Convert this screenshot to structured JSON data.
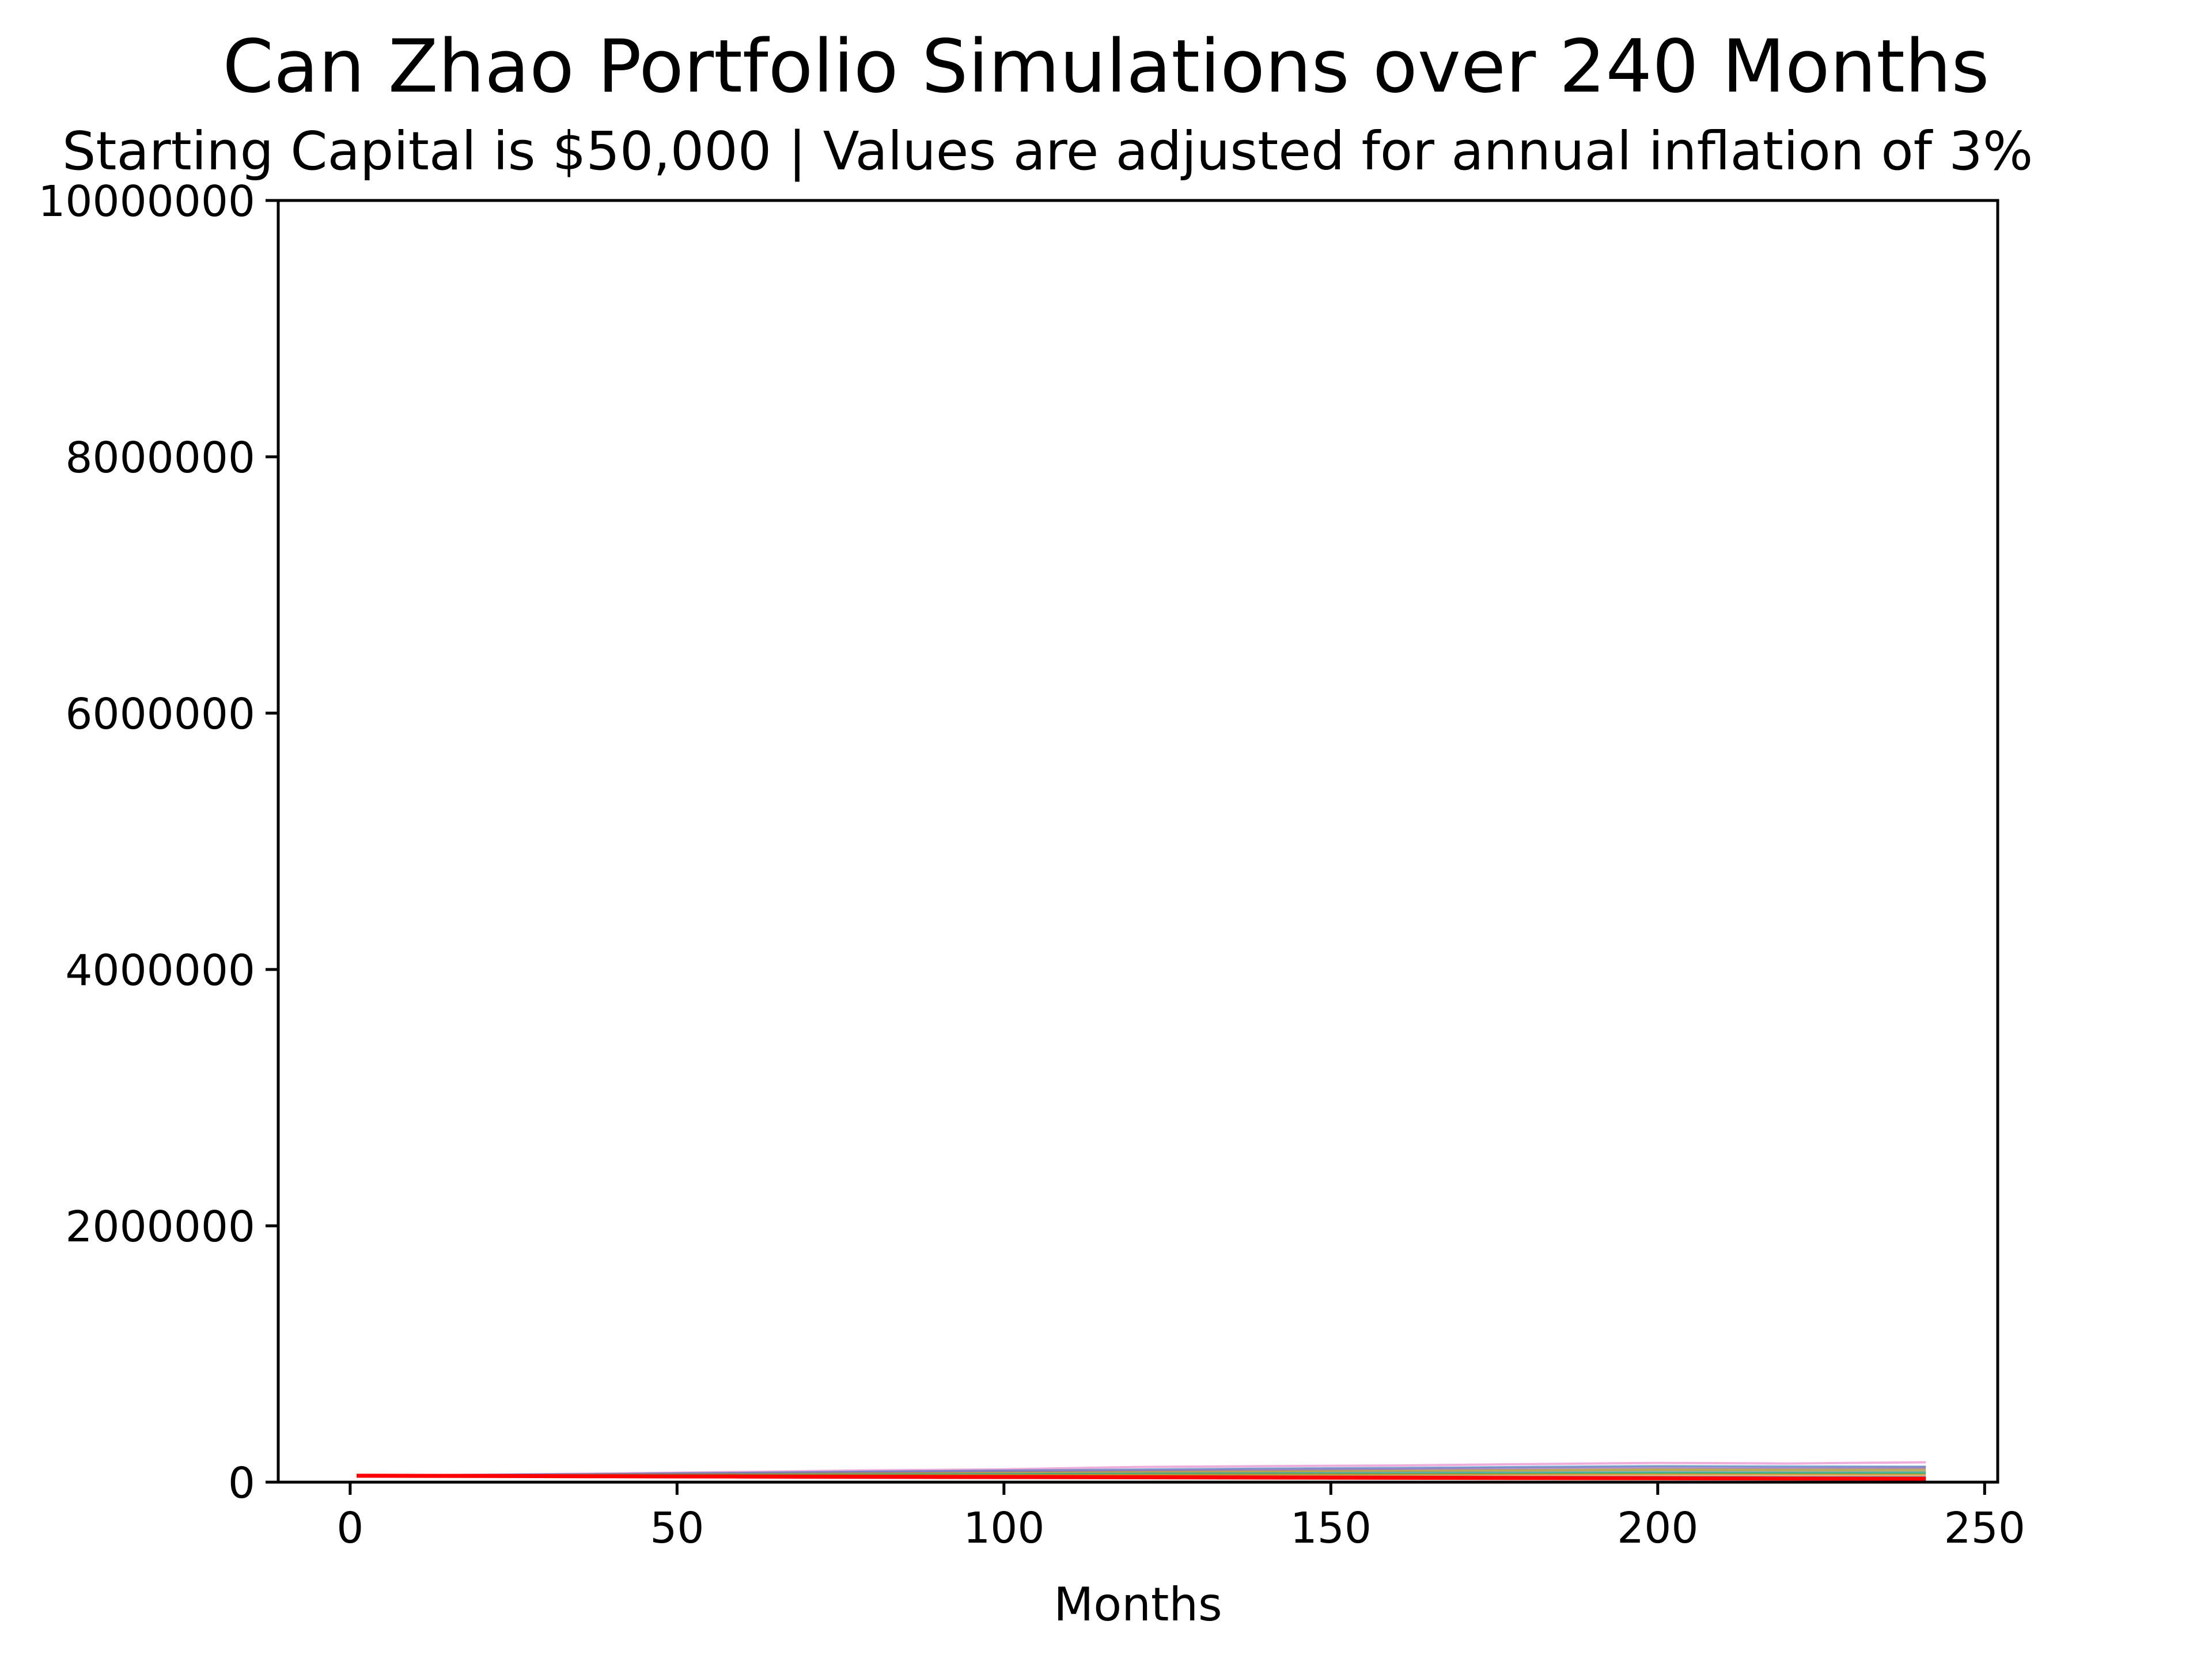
{
  "chart_data": {
    "type": "line",
    "title": "Can Zhao Portfolio Simulations over 240 Months",
    "subtitle": "Starting Capital is $50,000 | Values are adjusted for annual inflation of 3%",
    "xlabel": "Months",
    "ylabel": "",
    "xlim": [
      -11,
      252
    ],
    "ylim": [
      0,
      10000000
    ],
    "x_ticks": [
      0,
      50,
      100,
      150,
      200,
      250
    ],
    "y_ticks": [
      0,
      2000000,
      4000000,
      6000000,
      8000000,
      10000000
    ],
    "x_tick_labels": [
      "0",
      "50",
      "100",
      "150",
      "200",
      "250"
    ],
    "y_tick_labels": [
      "0",
      "2000000",
      "4000000",
      "6000000",
      "8000000",
      "10000000"
    ],
    "grid": false,
    "legend": "none",
    "x": [
      1,
      20,
      40,
      60,
      80,
      100,
      120,
      140,
      160,
      180,
      200,
      220,
      241
    ],
    "series": [
      {
        "color": "#e377c2",
        "values": [
          50000,
          58000,
          68000,
          80000,
          92000,
          100000,
          118000,
          125000,
          130000,
          140000,
          150000,
          145000,
          155000
        ]
      },
      {
        "color": "#1f77b4",
        "values": [
          50000,
          56000,
          63000,
          72000,
          82000,
          90000,
          98000,
          105000,
          110000,
          118000,
          125000,
          122000,
          120000
        ]
      },
      {
        "color": "#9467bd",
        "values": [
          50000,
          55000,
          61000,
          68000,
          78000,
          86000,
          92000,
          98000,
          104000,
          110000,
          116000,
          112000,
          115000
        ]
      },
      {
        "color": "#8c564b",
        "values": [
          50000,
          53000,
          57000,
          62000,
          68000,
          74000,
          80000,
          85000,
          90000,
          95000,
          100000,
          98000,
          100000
        ]
      },
      {
        "color": "#bcbd22",
        "values": [
          50000,
          52000,
          56000,
          60000,
          65000,
          70000,
          75000,
          80000,
          85000,
          90000,
          95000,
          92000,
          90000
        ]
      },
      {
        "color": "#7f7f7f",
        "values": [
          50000,
          52000,
          54000,
          57000,
          60000,
          64000,
          68000,
          72000,
          75000,
          78000,
          82000,
          80000,
          80000
        ]
      },
      {
        "color": "#17becf",
        "values": [
          50000,
          51000,
          53000,
          55000,
          58000,
          61000,
          64000,
          66000,
          69000,
          71000,
          74000,
          72000,
          73000
        ]
      },
      {
        "color": "#2ca02c",
        "values": [
          50000,
          51000,
          52000,
          54000,
          56000,
          58000,
          60000,
          62000,
          63000,
          65000,
          67000,
          66000,
          65000
        ]
      },
      {
        "color": "#ff7f0e",
        "values": [
          50000,
          50000,
          51000,
          52000,
          53000,
          54000,
          55000,
          56000,
          57000,
          58000,
          58000,
          57000,
          56000
        ]
      },
      {
        "color": "#1f77b4",
        "values": [
          50000,
          49000,
          48000,
          47000,
          46000,
          45000,
          45000,
          44000,
          43000,
          42000,
          41000,
          40000,
          40000
        ]
      },
      {
        "color": "#ff0000",
        "values": [
          50000,
          48000,
          46000,
          44000,
          42000,
          40000,
          38000,
          36000,
          34000,
          32000,
          30000,
          28000,
          27000
        ]
      }
    ]
  }
}
